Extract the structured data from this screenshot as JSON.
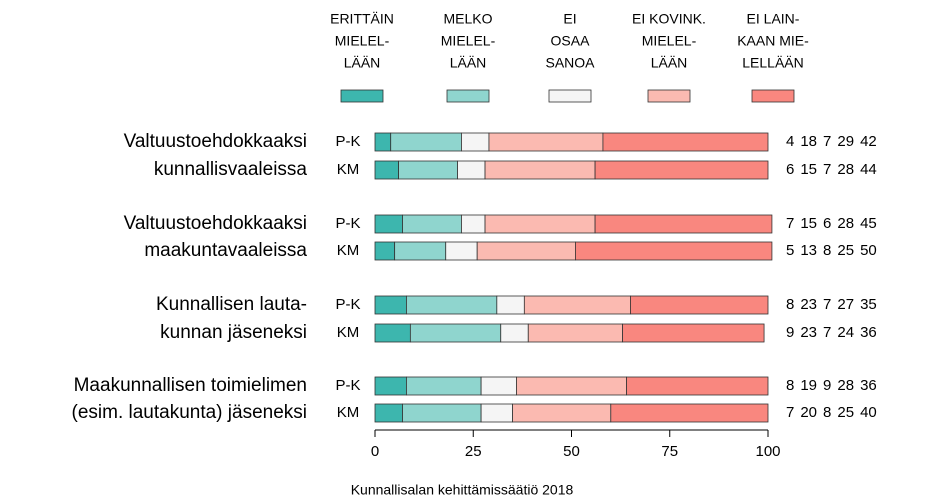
{
  "chart_data": {
    "type": "stacked_bar_h",
    "series": [
      {
        "name": [
          "ERITTÄIN",
          "MIELEL-",
          "LÄÄN"
        ],
        "color": "#3db6ae"
      },
      {
        "name": [
          "MELKO",
          "MIELEL-",
          "LÄÄN"
        ],
        "color": "#8fd5ce"
      },
      {
        "name": [
          "EI",
          "OSAA",
          "SANOA"
        ],
        "color": "#f5f5f5"
      },
      {
        "name": [
          "EI KOVINK.",
          "MIELEL-",
          "LÄÄN"
        ],
        "color": "#fbbab1"
      },
      {
        "name": [
          "EI LAIN-",
          "KAAN MIE-",
          "LELLÄÄN"
        ],
        "color": "#f9877f"
      }
    ],
    "groups": [
      {
        "label": [
          "Valtuustoehdokkaaksi",
          "kunnallisvaaleissa"
        ],
        "rows": [
          {
            "name": "P-K",
            "values": [
              4,
              18,
              7,
              29,
              42
            ]
          },
          {
            "name": "KM",
            "values": [
              6,
              15,
              7,
              28,
              44
            ]
          }
        ]
      },
      {
        "label": [
          "Valtuustoehdokkaaksi",
          "maakuntavaaleissa"
        ],
        "rows": [
          {
            "name": "P-K",
            "values": [
              7,
              15,
              6,
              28,
              45
            ]
          },
          {
            "name": "KM",
            "values": [
              5,
              13,
              8,
              25,
              50
            ]
          }
        ]
      },
      {
        "label": [
          "Kunnallisen lauta-",
          "kunnan jäseneksi"
        ],
        "rows": [
          {
            "name": "P-K",
            "values": [
              8,
              23,
              7,
              27,
              35
            ]
          },
          {
            "name": "KM",
            "values": [
              9,
              23,
              7,
              24,
              36
            ]
          }
        ]
      },
      {
        "label": [
          "Maakunnallisen toimielimen",
          "(esim. lautakunta) jäseneksi"
        ],
        "rows": [
          {
            "name": "P-K",
            "values": [
              8,
              19,
              9,
              28,
              36
            ]
          },
          {
            "name": "KM",
            "values": [
              7,
              20,
              8,
              25,
              40
            ]
          }
        ]
      }
    ],
    "xlim": [
      0,
      100
    ],
    "xticks": [
      0,
      25,
      50,
      75,
      100
    ],
    "source": "Kunnallisalan kehittämissäätiö 2018"
  }
}
